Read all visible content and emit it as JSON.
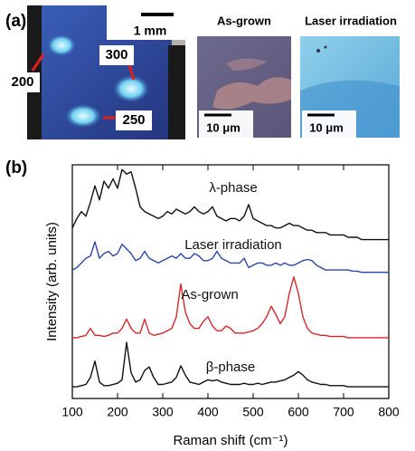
{
  "panel_a": {
    "label": "(a)",
    "scale_bar": "1 mm",
    "spots": [
      "200",
      "300",
      "250"
    ],
    "images": [
      {
        "title": "As-grown",
        "scale_bar": "10 μm"
      },
      {
        "title": "Laser irradiation",
        "scale_bar": "10 μm"
      }
    ]
  },
  "chart_data": {
    "type": "line",
    "panel_label": "(b)",
    "x_label": "Raman shift (cm⁻¹)",
    "y_label": "Intensity (arb. units)",
    "xlim": [
      100,
      800
    ],
    "xticks": [
      100,
      200,
      300,
      400,
      500,
      600,
      700,
      800
    ],
    "ylim": [
      0,
      100
    ],
    "x": [
      100,
      110,
      120,
      130,
      140,
      150,
      160,
      170,
      180,
      190,
      200,
      210,
      220,
      230,
      240,
      250,
      260,
      270,
      280,
      290,
      300,
      310,
      320,
      330,
      340,
      350,
      360,
      370,
      380,
      390,
      400,
      410,
      420,
      430,
      440,
      450,
      460,
      470,
      480,
      490,
      500,
      510,
      520,
      530,
      540,
      550,
      560,
      570,
      580,
      590,
      600,
      610,
      620,
      630,
      640,
      650,
      660,
      670,
      680,
      690,
      700,
      710,
      720,
      730,
      740,
      750,
      760,
      770,
      780,
      790,
      800
    ],
    "series": [
      {
        "name": "λ-phase",
        "color": "#111111",
        "values": [
          73,
          77,
          80,
          78,
          84,
          91,
          85,
          93,
          90,
          94,
          90,
          98,
          96,
          97,
          90,
          82,
          80,
          79,
          78,
          77,
          78,
          80,
          79,
          81,
          80,
          79,
          80,
          82,
          80,
          79,
          80,
          82,
          78,
          77,
          76,
          77,
          77,
          76,
          78,
          83,
          77,
          76,
          75,
          74,
          74,
          73,
          73,
          74,
          75,
          74,
          74,
          73,
          72,
          72,
          71,
          71,
          71,
          70,
          70,
          70,
          70,
          69,
          69,
          69,
          68,
          68,
          68,
          68,
          68,
          68,
          68
        ]
      },
      {
        "name": "Laser irradiation",
        "color": "#2a48a6",
        "values": [
          55,
          56,
          58,
          60,
          61,
          67,
          60,
          62,
          63,
          61,
          62,
          66,
          64,
          62,
          59,
          60,
          63,
          60,
          59,
          58,
          59,
          60,
          61,
          60,
          62,
          60,
          60,
          62,
          61,
          59,
          59,
          60,
          63,
          60,
          59,
          58,
          58,
          58,
          60,
          56,
          57,
          58,
          58,
          57,
          57,
          58,
          57,
          58,
          57,
          57,
          58,
          59,
          59.5,
          59,
          57,
          56,
          55,
          55,
          55,
          55,
          55,
          55,
          54.5,
          54.5,
          54,
          54,
          54,
          54,
          54,
          54,
          54
        ]
      },
      {
        "name": "As-grown",
        "color": "#d8262a",
        "values": [
          26,
          26,
          26.5,
          27,
          30,
          27,
          27,
          26.5,
          27,
          28,
          28,
          30,
          34,
          30,
          28,
          28,
          34,
          28,
          27,
          27.5,
          28,
          29,
          30,
          35,
          49,
          37,
          32,
          30,
          30,
          33,
          35,
          31,
          29,
          29,
          31,
          30,
          28,
          28,
          28,
          28.5,
          29,
          30,
          32,
          35,
          39.5,
          36,
          32,
          35,
          45,
          52,
          45,
          35,
          30,
          28,
          27.5,
          27,
          27,
          26.5,
          26.5,
          26.5,
          26.5,
          26,
          26,
          26,
          26,
          26,
          26,
          26,
          26,
          26,
          26
        ]
      },
      {
        "name": "β-phase",
        "color": "#111111",
        "values": [
          5,
          5,
          5.5,
          6,
          9,
          16,
          7,
          5.5,
          5.5,
          6,
          6.5,
          8,
          24,
          11,
          7,
          8,
          12,
          13.5,
          9,
          6,
          6,
          6.5,
          7,
          9,
          14,
          10,
          7,
          6.5,
          6,
          7,
          8,
          7.5,
          8,
          7,
          6.5,
          6,
          6,
          6,
          6.5,
          6,
          6,
          6.5,
          6,
          6.5,
          7,
          7,
          7.5,
          8,
          9,
          10,
          11.5,
          10,
          8,
          7,
          6.5,
          6,
          6,
          5.5,
          5.5,
          5.5,
          5.5,
          5,
          5,
          5,
          5,
          5,
          5,
          5,
          5,
          5,
          5
        ]
      }
    ]
  }
}
